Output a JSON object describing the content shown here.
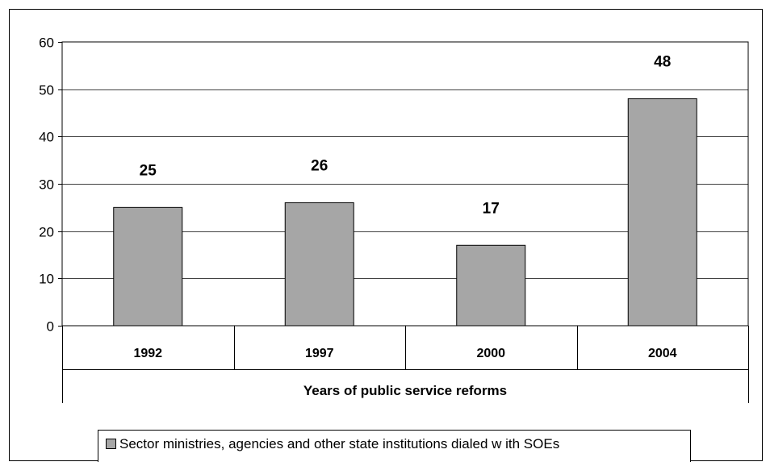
{
  "chart_data": {
    "type": "bar",
    "categories": [
      "1992",
      "1997",
      "2000",
      "2004"
    ],
    "series": [
      {
        "name": "Sector ministries, agencies and other state institutions dialed w ith SOEs",
        "values": [
          25,
          26,
          17,
          48
        ],
        "color": "#a6a6a6"
      }
    ],
    "title": "",
    "xlabel": "Years of public service reforms",
    "ylabel": "",
    "ylim": [
      0,
      60
    ],
    "yticks": [
      "0",
      "10",
      "20",
      "30",
      "40",
      "50",
      "60"
    ],
    "data_labels": [
      "25",
      "26",
      "17",
      "48"
    ],
    "grid": true,
    "legend_position": "bottom"
  }
}
